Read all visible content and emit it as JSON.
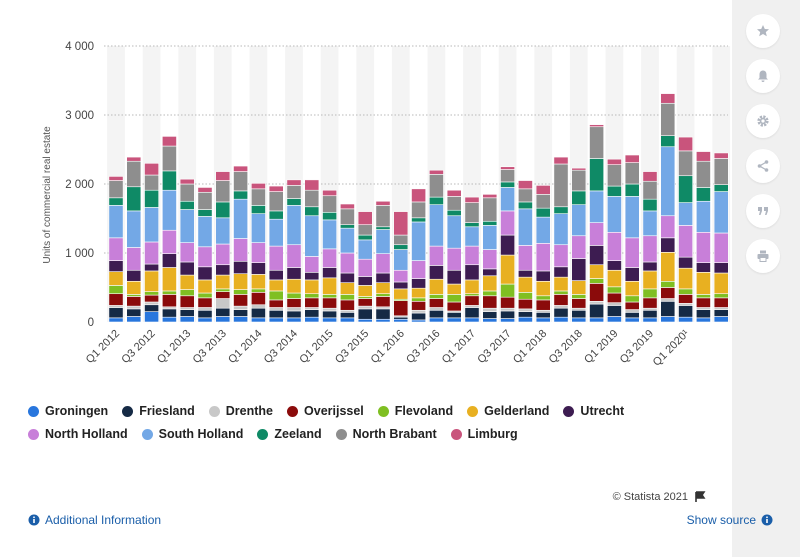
{
  "sidebar": {
    "icons": [
      "star-icon",
      "bell-icon",
      "gear-icon",
      "share-icon",
      "quote-icon",
      "print-icon"
    ]
  },
  "footer": {
    "additional_info": "Additional Information",
    "show_source": "Show source",
    "credits": "© Statista 2021"
  },
  "chart_data": {
    "type": "bar",
    "stacked": true,
    "ylabel": "Units of commercial real estate",
    "ylim": [
      0,
      4000
    ],
    "yticks": [
      0,
      1000,
      2000,
      3000,
      4000
    ],
    "ytick_labels": [
      "0",
      "1 000",
      "2 000",
      "3 000",
      "4 000"
    ],
    "grid": true,
    "legend_position": "bottom",
    "categories": [
      "Q1 2012",
      "Q2 2012",
      "Q3 2012",
      "Q4 2012",
      "Q1 2013",
      "Q2 2013",
      "Q3 2013",
      "Q4 2013",
      "Q1 2014",
      "Q2 2014",
      "Q3 2014",
      "Q4 2014",
      "Q1 2015",
      "Q2 2015",
      "Q3 2015",
      "Q4 2015",
      "Q1 2016",
      "Q2 2016",
      "Q3 2016",
      "Q4 2016",
      "Q1 2017",
      "Q2 2017",
      "Q3 2017",
      "Q4 2017",
      "Q1 2018",
      "Q2 2018",
      "Q3 2018",
      "Q4 2018",
      "Q1 2019",
      "Q2 2019",
      "Q3 2019",
      "Q4 2019",
      "Q1 2020¹",
      "Q2 2020¹",
      "Q3 2020¹"
    ],
    "xtick_labels": [
      "Q1 2012",
      "Q3 2012",
      "Q1 2013",
      "Q3 2013",
      "Q1 2014",
      "Q3 2014",
      "Q1 2015",
      "Q3 2015",
      "Q1 2016",
      "Q3 2016",
      "Q1 2017",
      "Q3 2017",
      "Q1 2018",
      "Q3 2018",
      "Q1 2019",
      "Q3 2019",
      "Q1 2020¹"
    ],
    "series": [
      {
        "name": "Groningen",
        "color": "#2876dd",
        "values": [
          60,
          80,
          150,
          70,
          80,
          60,
          80,
          80,
          60,
          60,
          60,
          70,
          60,
          60,
          40,
          40,
          40,
          30,
          60,
          60,
          60,
          50,
          50,
          70,
          60,
          70,
          60,
          60,
          80,
          60,
          60,
          80,
          70,
          60,
          80
        ]
      },
      {
        "name": "Friesland",
        "color": "#152a45",
        "values": [
          150,
          110,
          100,
          120,
          100,
          110,
          120,
          100,
          140,
          110,
          100,
          110,
          100,
          80,
          150,
          150,
          30,
          100,
          110,
          80,
          150,
          100,
          110,
          80,
          80,
          130,
          110,
          200,
          160,
          80,
          110,
          220,
          170,
          120,
          100
        ]
      },
      {
        "name": "Drenthe",
        "color": "#c8c8c8",
        "values": [
          30,
          40,
          40,
          30,
          30,
          40,
          140,
          50,
          50,
          40,
          50,
          30,
          40,
          30,
          40,
          30,
          20,
          40,
          40,
          20,
          30,
          50,
          40,
          40,
          30,
          40,
          30,
          40,
          40,
          40,
          30,
          40,
          30,
          30,
          30
        ]
      },
      {
        "name": "Overijssel",
        "color": "#8b0b0b",
        "values": [
          170,
          140,
          100,
          180,
          170,
          140,
          100,
          170,
          180,
          110,
          130,
          140,
          150,
          150,
          110,
          150,
          220,
          130,
          130,
          130,
          140,
          180,
          160,
          140,
          150,
          160,
          140,
          260,
          140,
          110,
          150,
          160,
          130,
          140,
          140
        ]
      },
      {
        "name": "Flevoland",
        "color": "#7fbf22",
        "values": [
          120,
          30,
          50,
          50,
          90,
          70,
          40,
          70,
          50,
          130,
          80,
          60,
          50,
          80,
          30,
          40,
          20,
          50,
          60,
          110,
          30,
          70,
          190,
          100,
          60,
          50,
          60,
          70,
          90,
          90,
          130,
          90,
          80,
          50,
          60
        ]
      },
      {
        "name": "Gelderland",
        "color": "#e8b021",
        "values": [
          200,
          190,
          300,
          340,
          210,
          190,
          200,
          230,
          210,
          160,
          200,
          200,
          240,
          170,
          160,
          160,
          150,
          140,
          220,
          150,
          200,
          220,
          420,
          220,
          210,
          200,
          200,
          200,
          240,
          210,
          260,
          420,
          300,
          320,
          300
        ]
      },
      {
        "name": "Utrecht",
        "color": "#3d1c51",
        "values": [
          160,
          160,
          100,
          200,
          190,
          190,
          150,
          180,
          170,
          140,
          170,
          110,
          150,
          140,
          130,
          140,
          100,
          140,
          200,
          200,
          220,
          100,
          290,
          100,
          150,
          150,
          320,
          280,
          140,
          200,
          130,
          210,
          160,
          140,
          150
        ]
      },
      {
        "name": "North Holland",
        "color": "#c87fd9",
        "values": [
          330,
          330,
          320,
          340,
          280,
          290,
          300,
          330,
          290,
          350,
          330,
          230,
          270,
          290,
          250,
          280,
          170,
          260,
          280,
          320,
          270,
          280,
          350,
          360,
          400,
          320,
          330,
          330,
          410,
          430,
          380,
          320,
          460,
          440,
          430
        ]
      },
      {
        "name": "South Holland",
        "color": "#73a8e6",
        "values": [
          470,
          530,
          500,
          580,
          480,
          440,
          380,
          570,
          420,
          390,
          570,
          590,
          420,
          360,
          280,
          350,
          300,
          560,
          600,
          470,
          280,
          350,
          340,
          530,
          380,
          450,
          450,
          460,
          520,
          600,
          360,
          1000,
          330,
          450,
          600
        ]
      },
      {
        "name": "Zeeland",
        "color": "#0f8a66",
        "values": [
          110,
          350,
          250,
          280,
          120,
          100,
          230,
          120,
          120,
          120,
          100,
          130,
          110,
          50,
          70,
          40,
          70,
          60,
          110,
          80,
          60,
          60,
          80,
          100,
          130,
          100,
          200,
          470,
          150,
          180,
          170,
          160,
          390,
          200,
          100
        ]
      },
      {
        "name": "North Brabant",
        "color": "#8e8e8e",
        "values": [
          250,
          370,
          220,
          360,
          250,
          250,
          310,
          280,
          240,
          280,
          190,
          240,
          240,
          230,
          150,
          310,
          140,
          230,
          330,
          200,
          290,
          340,
          180,
          190,
          200,
          620,
          300,
          460,
          310,
          310,
          260,
          470,
          360,
          380,
          380
        ]
      },
      {
        "name": "Limburg",
        "color": "#c9547c",
        "values": [
          60,
          60,
          170,
          140,
          70,
          70,
          130,
          80,
          80,
          80,
          80,
          150,
          80,
          70,
          190,
          60,
          340,
          190,
          60,
          90,
          80,
          50,
          40,
          120,
          130,
          100,
          30,
          30,
          80,
          110,
          140,
          140,
          200,
          140,
          80
        ]
      }
    ]
  }
}
